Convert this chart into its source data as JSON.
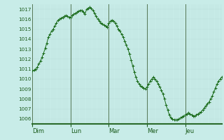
{
  "background_color": "#c8ece8",
  "plot_bg_color": "#c8ece8",
  "line_color": "#1a6b1a",
  "marker_color": "#1a6b1a",
  "grid_color_major": "#aacccc",
  "grid_color_minor": "#b8ddd8",
  "bottom_line_color": "#2a6b2a",
  "day_line_color": "#557755",
  "ylim": [
    1005.5,
    1017.5
  ],
  "yticks": [
    1006,
    1007,
    1008,
    1009,
    1010,
    1011,
    1012,
    1013,
    1014,
    1015,
    1016,
    1017
  ],
  "day_labels": [
    "Dim",
    "Lun",
    "Mar",
    "Mer",
    "Jeu"
  ],
  "day_positions": [
    0,
    24,
    48,
    72,
    96
  ],
  "total_hours": 119,
  "pressure_data": [
    1010.8,
    1010.9,
    1011.0,
    1011.2,
    1011.5,
    1011.8,
    1012.2,
    1012.6,
    1013.1,
    1013.6,
    1014.2,
    1014.5,
    1014.8,
    1015.0,
    1015.3,
    1015.6,
    1015.9,
    1016.0,
    1016.1,
    1016.2,
    1016.3,
    1016.35,
    1016.3,
    1016.2,
    1016.2,
    1016.4,
    1016.5,
    1016.6,
    1016.7,
    1016.8,
    1016.9,
    1016.85,
    1016.7,
    1016.5,
    1017.0,
    1017.1,
    1017.2,
    1017.1,
    1016.9,
    1016.6,
    1016.3,
    1016.0,
    1015.8,
    1015.6,
    1015.5,
    1015.4,
    1015.3,
    1015.2,
    1015.6,
    1015.8,
    1015.9,
    1015.8,
    1015.6,
    1015.3,
    1015.0,
    1014.8,
    1014.5,
    1014.2,
    1013.8,
    1013.4,
    1013.0,
    1012.5,
    1011.9,
    1011.3,
    1010.7,
    1010.2,
    1009.8,
    1009.5,
    1009.3,
    1009.2,
    1009.1,
    1009.0,
    1009.2,
    1009.5,
    1009.8,
    1010.0,
    1010.2,
    1010.0,
    1009.8,
    1009.5,
    1009.2,
    1008.9,
    1008.5,
    1008.0,
    1007.4,
    1006.9,
    1006.4,
    1006.1,
    1006.0,
    1005.9,
    1005.9,
    1005.9,
    1006.0,
    1006.1,
    1006.2,
    1006.3,
    1006.4,
    1006.5,
    1006.6,
    1006.5,
    1006.4,
    1006.3,
    1006.3,
    1006.4,
    1006.5,
    1006.6,
    1006.7,
    1006.9,
    1007.1,
    1007.3,
    1007.5,
    1007.7,
    1008.0,
    1008.3,
    1008.7,
    1009.1,
    1009.5,
    1009.8,
    1010.0,
    1010.2
  ]
}
